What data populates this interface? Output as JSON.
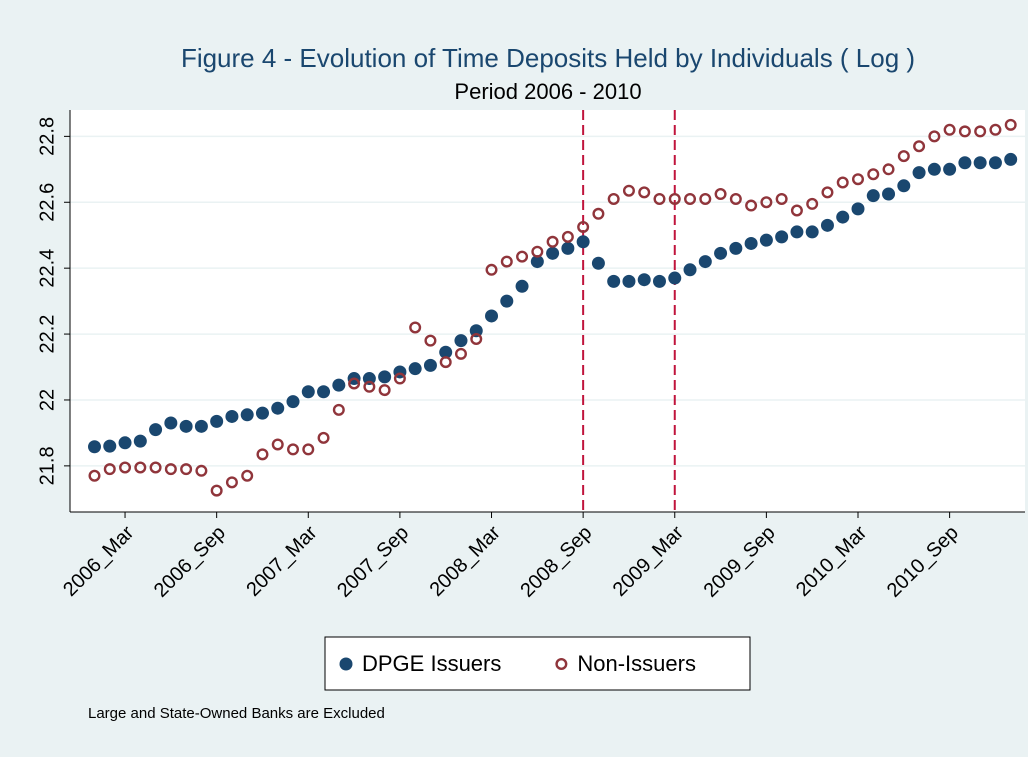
{
  "chart_data": {
    "type": "scatter",
    "title": "Figure 4 - Evolution of Time Deposits Held by Individuals ( Log )",
    "subtitle": "Period 2006 - 2010",
    "note": "Large and State-Owned Banks are Excluded",
    "categories": [
      null,
      null,
      "2006_Mar",
      null,
      null,
      null,
      null,
      null,
      "2006_Sep",
      null,
      null,
      null,
      null,
      null,
      "2007_Mar",
      null,
      null,
      null,
      null,
      null,
      "2007_Sep",
      null,
      null,
      null,
      null,
      null,
      "2008_Mar",
      null,
      null,
      null,
      null,
      null,
      "2008_Sep",
      null,
      null,
      null,
      null,
      null,
      "2009_Mar",
      null,
      null,
      null,
      null,
      null,
      "2009_Sep",
      null,
      null,
      null,
      null,
      null,
      "2010_Mar",
      null,
      null,
      null,
      null,
      null,
      "2010_Sep",
      null,
      null,
      null,
      null
    ],
    "series": [
      {
        "name": "DPGE Issuers",
        "color": "#1a476f",
        "marker": "filled",
        "values": [
          21.858,
          21.86,
          21.87,
          21.875,
          21.91,
          21.93,
          21.92,
          21.92,
          21.935,
          21.95,
          21.955,
          21.96,
          21.975,
          21.995,
          22.025,
          22.025,
          22.045,
          22.065,
          22.065,
          22.07,
          22.085,
          22.095,
          22.105,
          22.145,
          22.18,
          22.21,
          22.255,
          22.3,
          22.345,
          22.42,
          22.445,
          22.46,
          22.48,
          22.415,
          22.36,
          22.36,
          22.365,
          22.36,
          22.37,
          22.395,
          22.42,
          22.445,
          22.46,
          22.475,
          22.485,
          22.495,
          22.51,
          22.51,
          22.53,
          22.555,
          22.58,
          22.62,
          22.625,
          22.65,
          22.69,
          22.7,
          22.7,
          22.72,
          22.72,
          22.72,
          22.73
        ]
      },
      {
        "name": "Non-Issuers",
        "color": "#90353b",
        "marker": "hollow",
        "values": [
          21.77,
          21.79,
          21.795,
          21.795,
          21.795,
          21.79,
          21.79,
          21.785,
          21.725,
          21.75,
          21.77,
          21.835,
          21.865,
          21.85,
          21.85,
          21.885,
          21.97,
          22.05,
          22.04,
          22.03,
          22.065,
          22.22,
          22.18,
          22.115,
          22.14,
          22.185,
          22.395,
          22.42,
          22.435,
          22.45,
          22.48,
          22.495,
          22.525,
          22.565,
          22.61,
          22.635,
          22.63,
          22.61,
          22.61,
          22.61,
          22.61,
          22.625,
          22.61,
          22.59,
          22.6,
          22.61,
          22.575,
          22.595,
          22.63,
          22.66,
          22.67,
          22.685,
          22.7,
          22.74,
          22.77,
          22.8,
          22.82,
          22.815,
          22.815,
          22.82,
          22.835
        ]
      }
    ],
    "ylim": [
      21.66,
      22.88
    ],
    "yticks": [
      21.8,
      22,
      22.2,
      22.4,
      22.6,
      22.8
    ],
    "grid": true,
    "vlines": [
      32,
      38
    ],
    "vline_color": "#c0143c",
    "legend": "bottom"
  }
}
